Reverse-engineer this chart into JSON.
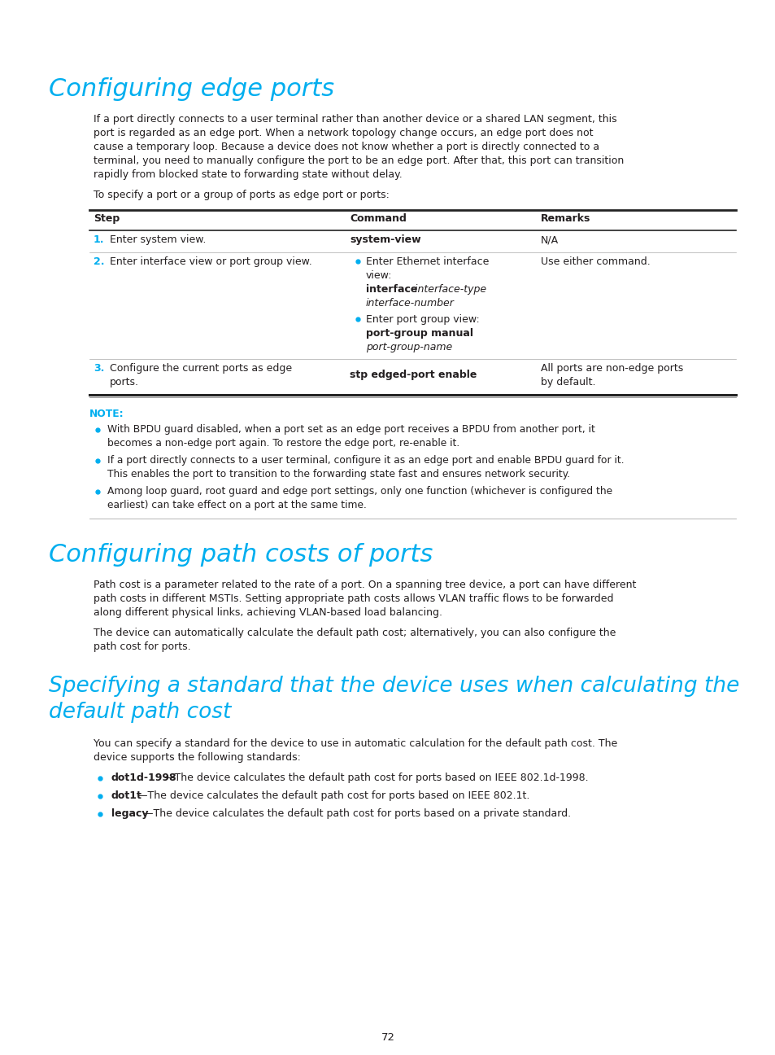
{
  "bg_color": "#ffffff",
  "heading_color": "#00AEEF",
  "text_color": "#231F20",
  "note_color": "#00AEEF",
  "bullet_color": "#00AEEF",
  "title1": "Configuring edge ports",
  "title2": "Configuring path costs of ports",
  "title3_line1": "Specifying a standard that the device uses when calculating the",
  "title3_line2": "default path cost",
  "intro1_lines": [
    "If a port directly connects to a user terminal rather than another device or a shared LAN segment, this",
    "port is regarded as an edge port. When a network topology change occurs, an edge port does not",
    "cause a temporary loop. Because a device does not know whether a port is directly connected to a",
    "terminal, you need to manually configure the port to be an edge port. After that, this port can transition",
    "rapidly from blocked state to forwarding state without delay."
  ],
  "intro2": "To specify a port or a group of ports as edge port or ports:",
  "note_label": "NOTE:",
  "note_bullets": [
    [
      "With BPDU guard disabled, when a port set as an edge port receives a BPDU from another port, it",
      "becomes a non-edge port again. To restore the edge port, re-enable it."
    ],
    [
      "If a port directly connects to a user terminal, configure it as an edge port and enable BPDU guard for it.",
      "This enables the port to transition to the forwarding state fast and ensures network security."
    ],
    [
      "Among loop guard, root guard and edge port settings, only one function (whichever is configured the",
      "earliest) can take effect on a port at the same time."
    ]
  ],
  "path_cost_intro1_lines": [
    "Path cost is a parameter related to the rate of a port. On a spanning tree device, a port can have different",
    "path costs in different MSTIs. Setting appropriate path costs allows VLAN traffic flows to be forwarded",
    "along different physical links, achieving VLAN-based load balancing."
  ],
  "path_cost_intro2_lines": [
    "The device can automatically calculate the default path cost; alternatively, you can also configure the",
    "path cost for ports."
  ],
  "specifying_intro_lines": [
    "You can specify a standard for the device to use in automatic calculation for the default path cost. The",
    "device supports the following standards:"
  ],
  "specifying_bullets": [
    {
      "bold": "dot1d-1998",
      "rest": "—The device calculates the default path cost for ports based on IEEE 802.1d-1998."
    },
    {
      "bold": "dot1t",
      "rest": "—The device calculates the default path cost for ports based on IEEE 802.1t."
    },
    {
      "bold": "legacy",
      "rest": "—The device calculates the default path cost for ports based on a private standard."
    }
  ],
  "page_number": "72"
}
